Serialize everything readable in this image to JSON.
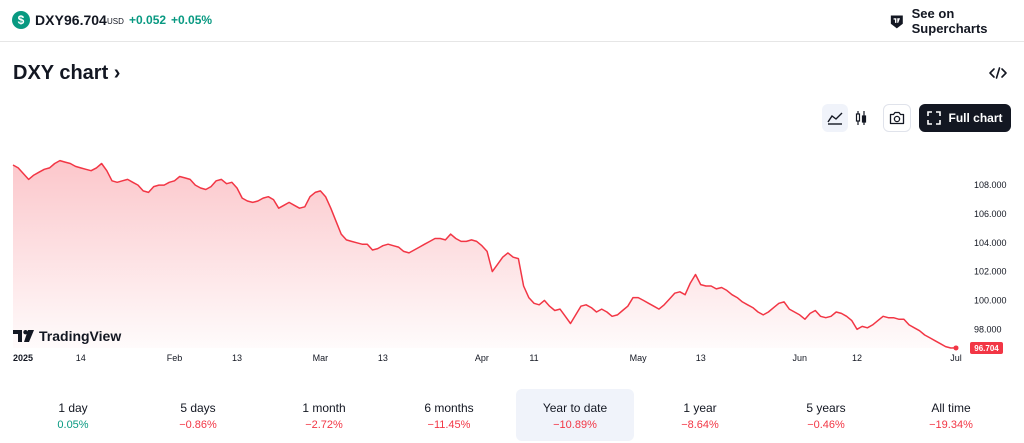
{
  "header": {
    "symbol_icon": "$",
    "symbol": "DXY",
    "price": "96.704",
    "currency": "USD",
    "change": "+0.052",
    "change_pct": "+0.05%",
    "supercharts_label": "See on Supercharts"
  },
  "title": "DXY chart ›",
  "toolbar": {
    "full_chart_label": "Full chart",
    "icons": [
      "area-chart-icon",
      "candles-icon",
      "camera-icon",
      "fullscreen-icon",
      "embed-code-icon"
    ]
  },
  "branding": {
    "logo_text": "TradingView"
  },
  "chart_data": {
    "type": "area",
    "ylim": [
      96.7,
      110.3
    ],
    "yticks": [
      98,
      100,
      102,
      104,
      106,
      108
    ],
    "ytick_labels": [
      "98.000",
      "100.000",
      "102.000",
      "104.000",
      "106.000",
      "108.000"
    ],
    "x_tick_labels": [
      {
        "date": "2025-01-01",
        "label": "2025",
        "bold": true
      },
      {
        "date": "2025-01-14",
        "label": "14"
      },
      {
        "date": "2025-02-01",
        "label": "Feb"
      },
      {
        "date": "2025-02-13",
        "label": "13"
      },
      {
        "date": "2025-03-01",
        "label": "Mar"
      },
      {
        "date": "2025-03-13",
        "label": "13"
      },
      {
        "date": "2025-04-01",
        "label": "Apr"
      },
      {
        "date": "2025-04-11",
        "label": "11"
      },
      {
        "date": "2025-05-01",
        "label": "May"
      },
      {
        "date": "2025-05-13",
        "label": "13"
      },
      {
        "date": "2025-06-01",
        "label": "Jun"
      },
      {
        "date": "2025-06-12",
        "label": "12"
      },
      {
        "date": "2025-07-01",
        "label": "Jul"
      }
    ],
    "last_value_label": "96.704",
    "line_color": "#f23645",
    "series": [
      {
        "values": [
          [
            "2025-01-01",
            109.4
          ],
          [
            "2025-01-02",
            109.2
          ],
          [
            "2025-01-03",
            108.8
          ],
          [
            "2025-01-04",
            108.4
          ],
          [
            "2025-01-05",
            108.7
          ],
          [
            "2025-01-06",
            108.9
          ],
          [
            "2025-01-07",
            109.1
          ],
          [
            "2025-01-08",
            109.2
          ],
          [
            "2025-01-09",
            109.5
          ],
          [
            "2025-01-10",
            109.7
          ],
          [
            "2025-01-11",
            109.6
          ],
          [
            "2025-01-12",
            109.5
          ],
          [
            "2025-01-13",
            109.3
          ],
          [
            "2025-01-14",
            109.2
          ],
          [
            "2025-01-15",
            109.1
          ],
          [
            "2025-01-16",
            109.0
          ],
          [
            "2025-01-17",
            109.2
          ],
          [
            "2025-01-18",
            109.5
          ],
          [
            "2025-01-19",
            109.0
          ],
          [
            "2025-01-20",
            108.3
          ],
          [
            "2025-01-21",
            108.2
          ],
          [
            "2025-01-22",
            108.3
          ],
          [
            "2025-01-23",
            108.4
          ],
          [
            "2025-01-24",
            108.2
          ],
          [
            "2025-01-25",
            108.0
          ],
          [
            "2025-01-26",
            107.6
          ],
          [
            "2025-01-27",
            107.5
          ],
          [
            "2025-01-28",
            107.9
          ],
          [
            "2025-01-29",
            108.0
          ],
          [
            "2025-01-30",
            108.0
          ],
          [
            "2025-01-31",
            108.2
          ],
          [
            "2025-02-01",
            108.3
          ],
          [
            "2025-02-02",
            108.6
          ],
          [
            "2025-02-03",
            108.5
          ],
          [
            "2025-02-04",
            108.4
          ],
          [
            "2025-02-05",
            108.0
          ],
          [
            "2025-02-06",
            107.8
          ],
          [
            "2025-02-07",
            107.7
          ],
          [
            "2025-02-08",
            107.9
          ],
          [
            "2025-02-09",
            108.3
          ],
          [
            "2025-02-10",
            108.4
          ],
          [
            "2025-02-11",
            108.1
          ],
          [
            "2025-02-12",
            108.2
          ],
          [
            "2025-02-13",
            107.8
          ],
          [
            "2025-02-14",
            107.1
          ],
          [
            "2025-02-15",
            106.9
          ],
          [
            "2025-02-16",
            106.8
          ],
          [
            "2025-02-17",
            106.9
          ],
          [
            "2025-02-18",
            107.1
          ],
          [
            "2025-02-19",
            107.2
          ],
          [
            "2025-02-20",
            107.0
          ],
          [
            "2025-02-21",
            106.4
          ],
          [
            "2025-02-22",
            106.6
          ],
          [
            "2025-02-23",
            106.8
          ],
          [
            "2025-02-24",
            106.6
          ],
          [
            "2025-02-25",
            106.4
          ],
          [
            "2025-02-26",
            106.5
          ],
          [
            "2025-02-27",
            107.2
          ],
          [
            "2025-02-28",
            107.5
          ],
          [
            "2025-03-01",
            107.6
          ],
          [
            "2025-03-02",
            107.2
          ],
          [
            "2025-03-03",
            106.4
          ],
          [
            "2025-03-04",
            105.5
          ],
          [
            "2025-03-05",
            104.6
          ],
          [
            "2025-03-06",
            104.2
          ],
          [
            "2025-03-07",
            104.1
          ],
          [
            "2025-03-08",
            104.0
          ],
          [
            "2025-03-09",
            103.9
          ],
          [
            "2025-03-10",
            103.9
          ],
          [
            "2025-03-11",
            103.5
          ],
          [
            "2025-03-12",
            103.6
          ],
          [
            "2025-03-13",
            103.8
          ],
          [
            "2025-03-14",
            103.9
          ],
          [
            "2025-03-15",
            103.8
          ],
          [
            "2025-03-16",
            103.7
          ],
          [
            "2025-03-17",
            103.4
          ],
          [
            "2025-03-18",
            103.3
          ],
          [
            "2025-03-19",
            103.5
          ],
          [
            "2025-03-20",
            103.7
          ],
          [
            "2025-03-21",
            103.9
          ],
          [
            "2025-03-22",
            104.1
          ],
          [
            "2025-03-23",
            104.3
          ],
          [
            "2025-03-24",
            104.3
          ],
          [
            "2025-03-25",
            104.2
          ],
          [
            "2025-03-26",
            104.6
          ],
          [
            "2025-03-27",
            104.3
          ],
          [
            "2025-03-28",
            104.1
          ],
          [
            "2025-03-29",
            104.1
          ],
          [
            "2025-03-30",
            104.2
          ],
          [
            "2025-03-31",
            104.1
          ],
          [
            "2025-04-01",
            103.8
          ],
          [
            "2025-04-02",
            103.4
          ],
          [
            "2025-04-03",
            102.0
          ],
          [
            "2025-04-04",
            102.5
          ],
          [
            "2025-04-05",
            103.0
          ],
          [
            "2025-04-06",
            103.3
          ],
          [
            "2025-04-07",
            103.0
          ],
          [
            "2025-04-08",
            102.9
          ],
          [
            "2025-04-09",
            101.0
          ],
          [
            "2025-04-10",
            100.2
          ],
          [
            "2025-04-11",
            99.8
          ],
          [
            "2025-04-12",
            99.7
          ],
          [
            "2025-04-13",
            100.0
          ],
          [
            "2025-04-14",
            99.6
          ],
          [
            "2025-04-15",
            99.3
          ],
          [
            "2025-04-16",
            99.4
          ],
          [
            "2025-04-17",
            98.9
          ],
          [
            "2025-04-18",
            98.4
          ],
          [
            "2025-04-19",
            99.0
          ],
          [
            "2025-04-20",
            99.6
          ],
          [
            "2025-04-21",
            99.7
          ],
          [
            "2025-04-22",
            99.5
          ],
          [
            "2025-04-23",
            99.2
          ],
          [
            "2025-04-24",
            99.4
          ],
          [
            "2025-04-25",
            99.2
          ],
          [
            "2025-04-26",
            98.9
          ],
          [
            "2025-04-27",
            99.0
          ],
          [
            "2025-04-28",
            99.3
          ],
          [
            "2025-04-29",
            99.6
          ],
          [
            "2025-04-30",
            100.2
          ],
          [
            "2025-05-01",
            100.2
          ],
          [
            "2025-05-02",
            100.0
          ],
          [
            "2025-05-03",
            99.8
          ],
          [
            "2025-05-04",
            99.6
          ],
          [
            "2025-05-05",
            99.4
          ],
          [
            "2025-05-06",
            99.7
          ],
          [
            "2025-05-07",
            100.1
          ],
          [
            "2025-05-08",
            100.5
          ],
          [
            "2025-05-09",
            100.6
          ],
          [
            "2025-05-10",
            100.4
          ],
          [
            "2025-05-11",
            101.2
          ],
          [
            "2025-05-12",
            101.8
          ],
          [
            "2025-05-13",
            101.1
          ],
          [
            "2025-05-14",
            101.0
          ],
          [
            "2025-05-15",
            101.0
          ],
          [
            "2025-05-16",
            100.8
          ],
          [
            "2025-05-17",
            100.9
          ],
          [
            "2025-05-18",
            100.7
          ],
          [
            "2025-05-19",
            100.4
          ],
          [
            "2025-05-20",
            100.2
          ],
          [
            "2025-05-21",
            99.9
          ],
          [
            "2025-05-22",
            99.7
          ],
          [
            "2025-05-23",
            99.5
          ],
          [
            "2025-05-24",
            99.2
          ],
          [
            "2025-05-25",
            99.0
          ],
          [
            "2025-05-26",
            99.2
          ],
          [
            "2025-05-27",
            99.5
          ],
          [
            "2025-05-28",
            99.8
          ],
          [
            "2025-05-29",
            99.9
          ],
          [
            "2025-05-30",
            99.4
          ],
          [
            "2025-05-31",
            99.2
          ],
          [
            "2025-06-01",
            99.0
          ],
          [
            "2025-06-02",
            98.7
          ],
          [
            "2025-06-03",
            99.1
          ],
          [
            "2025-06-04",
            99.3
          ],
          [
            "2025-06-05",
            98.9
          ],
          [
            "2025-06-06",
            98.8
          ],
          [
            "2025-06-07",
            98.9
          ],
          [
            "2025-06-08",
            99.2
          ],
          [
            "2025-06-09",
            99.1
          ],
          [
            "2025-06-10",
            98.9
          ],
          [
            "2025-06-11",
            98.6
          ],
          [
            "2025-06-12",
            98.0
          ],
          [
            "2025-06-13",
            98.2
          ],
          [
            "2025-06-14",
            98.1
          ],
          [
            "2025-06-15",
            98.3
          ],
          [
            "2025-06-16",
            98.6
          ],
          [
            "2025-06-17",
            98.9
          ],
          [
            "2025-06-18",
            98.8
          ],
          [
            "2025-06-19",
            98.8
          ],
          [
            "2025-06-20",
            98.7
          ],
          [
            "2025-06-21",
            98.7
          ],
          [
            "2025-06-22",
            98.3
          ],
          [
            "2025-06-23",
            98.1
          ],
          [
            "2025-06-24",
            97.9
          ],
          [
            "2025-06-25",
            97.6
          ],
          [
            "2025-06-26",
            97.4
          ],
          [
            "2025-06-27",
            97.2
          ],
          [
            "2025-06-28",
            97.0
          ],
          [
            "2025-06-29",
            96.8
          ],
          [
            "2025-06-30",
            96.7
          ],
          [
            "2025-07-01",
            96.704
          ]
        ]
      }
    ]
  },
  "periods": [
    {
      "label": "1 day",
      "value": "0.05%",
      "sign": "pos"
    },
    {
      "label": "5 days",
      "value": "−0.86%",
      "sign": "neg"
    },
    {
      "label": "1 month",
      "value": "−2.72%",
      "sign": "neg"
    },
    {
      "label": "6 months",
      "value": "−11.45%",
      "sign": "neg"
    },
    {
      "label": "Year to date",
      "value": "−10.89%",
      "sign": "neg",
      "active": true
    },
    {
      "label": "1 year",
      "value": "−8.64%",
      "sign": "neg"
    },
    {
      "label": "5 years",
      "value": "−0.46%",
      "sign": "neg"
    },
    {
      "label": "All time",
      "value": "−19.34%",
      "sign": "neg"
    }
  ]
}
